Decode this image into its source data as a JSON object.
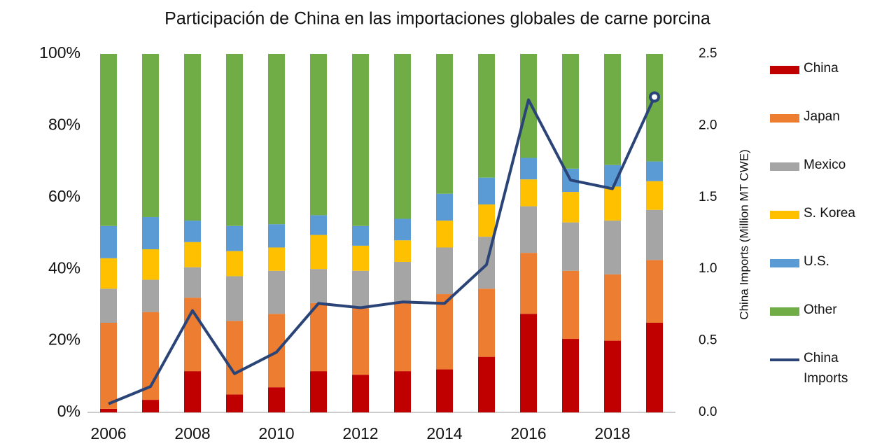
{
  "chart_data": {
    "type": "stacked-bar-line",
    "title": "Participación de China en las importaciones globales de carne porcina",
    "y2_label": "China Imports (Million MT CWE)",
    "categories": [
      "2006",
      null,
      "2008",
      null,
      "2010",
      null,
      "2012",
      null,
      "2014",
      null,
      "2016",
      null,
      "2018",
      null
    ],
    "ylim": [
      0,
      100
    ],
    "yticks": [
      {
        "value": 0,
        "label": "0%"
      },
      {
        "value": 20,
        "label": "20%"
      },
      {
        "value": 40,
        "label": "40%"
      },
      {
        "value": 60,
        "label": "60%"
      },
      {
        "value": 80,
        "label": "80%"
      },
      {
        "value": 100,
        "label": "100%"
      }
    ],
    "y2lim": [
      0,
      2.5
    ],
    "y2ticks": [
      {
        "value": 0,
        "label": "0.0"
      },
      0.5,
      {
        "value": 1,
        "label": "1.0"
      },
      1.5,
      {
        "value": 2,
        "label": "2.0"
      },
      2.5
    ],
    "series": [
      {
        "name": "China",
        "color": "#c00000",
        "values": [
          1,
          3.5,
          11.5,
          5,
          7,
          11.5,
          10.5,
          11.5,
          12,
          15.5,
          27.5,
          20.5,
          20,
          25
        ]
      },
      {
        "name": "Japan",
        "color": "#ed7d31",
        "values": [
          24,
          24.5,
          20.5,
          20.5,
          20.5,
          19,
          18.5,
          19,
          21,
          19,
          17,
          19,
          18.5,
          17.5
        ]
      },
      {
        "name": "Mexico",
        "color": "#a5a5a5",
        "values": [
          9.5,
          9,
          8.5,
          12.5,
          12,
          9.5,
          10.5,
          11.5,
          13,
          14.5,
          13,
          13.5,
          15,
          14
        ]
      },
      {
        "name": "S. Korea",
        "color": "#ffc000",
        "values": [
          8.5,
          8.5,
          7,
          7,
          6.5,
          9.5,
          7,
          6,
          7.5,
          9,
          7.5,
          8.5,
          9.5,
          8
        ]
      },
      {
        "name": "U.S.",
        "color": "#5b9bd5",
        "values": [
          9,
          9,
          6,
          7,
          6.5,
          5.5,
          5.5,
          6,
          7.5,
          7.5,
          6,
          6.5,
          6,
          5.5
        ]
      },
      {
        "name": "Other",
        "color": "#70ad47",
        "values": [
          48,
          45.5,
          46.5,
          48,
          47.5,
          45,
          48,
          46,
          39,
          34.5,
          29,
          32,
          31,
          30
        ]
      },
      {
        "name": "China Imports",
        "color": "#2a4478",
        "axis": "y2",
        "end_marker": true,
        "values": [
          0.06,
          0.18,
          0.71,
          0.27,
          0.42,
          0.76,
          0.73,
          0.77,
          0.76,
          1.03,
          2.18,
          1.62,
          1.56,
          2.2
        ]
      }
    ]
  }
}
